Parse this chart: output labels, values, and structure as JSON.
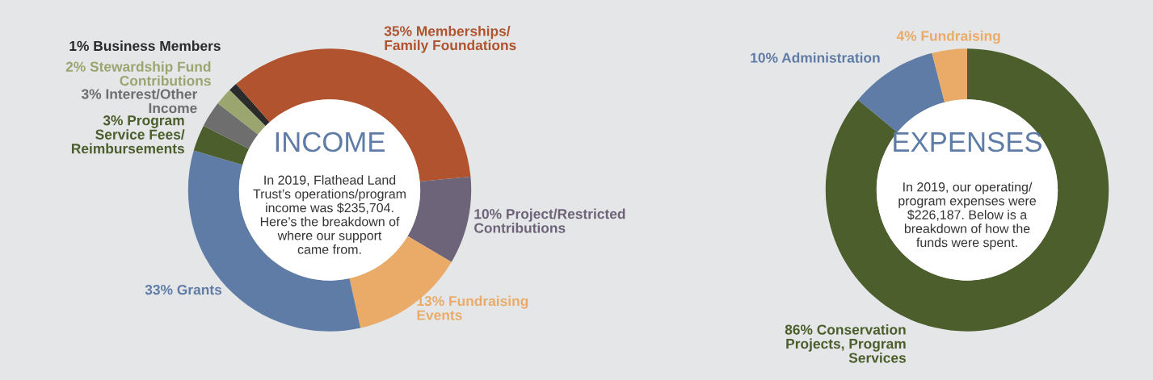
{
  "chart_data": [
    {
      "type": "donut",
      "title": "INCOME",
      "annotations": [
        "In 2019, Flathead Land\nTrust’s operations/program\nincome was $235,704.\nHere’s the breakdown of\nwhere our support\ncame from."
      ],
      "categories": [
        "Business Members",
        "Memberships/\nFamily Foundations",
        "Project/Restricted\nContributions",
        "Fundraising\nEvents",
        "Grants",
        "Program\nService Fees/\nReimbursements",
        "Interest/Other\nIncome",
        "Stewardship Fund\nContributions"
      ],
      "values": [
        1,
        35,
        10,
        13,
        33,
        3,
        3,
        2
      ],
      "value_labels": [
        "1%",
        "35%",
        "10%",
        "13%",
        "33%",
        "3%",
        "3%",
        "2%"
      ],
      "colors": [
        "#2b2b2b",
        "#b0532e",
        "#6e6479",
        "#e9ab67",
        "#5f7ca6",
        "#4b5e2b",
        "#6e6e6e",
        "#9aa56f"
      ]
    },
    {
      "type": "donut",
      "title": "EXPENSES",
      "annotations": [
        "In 2019, our operating/\nprogram expenses were\n$226,187. Below is a\nbreakdown of how the\nfunds were spent."
      ],
      "categories": [
        "Conservation\nProjects, Program\nServices",
        "Administration",
        "Fundraising"
      ],
      "values": [
        86,
        10,
        4
      ],
      "value_labels": [
        "86%",
        "10%",
        "4%"
      ],
      "colors": [
        "#4b5e2b",
        "#5f7ca6",
        "#e9ab67"
      ]
    }
  ]
}
